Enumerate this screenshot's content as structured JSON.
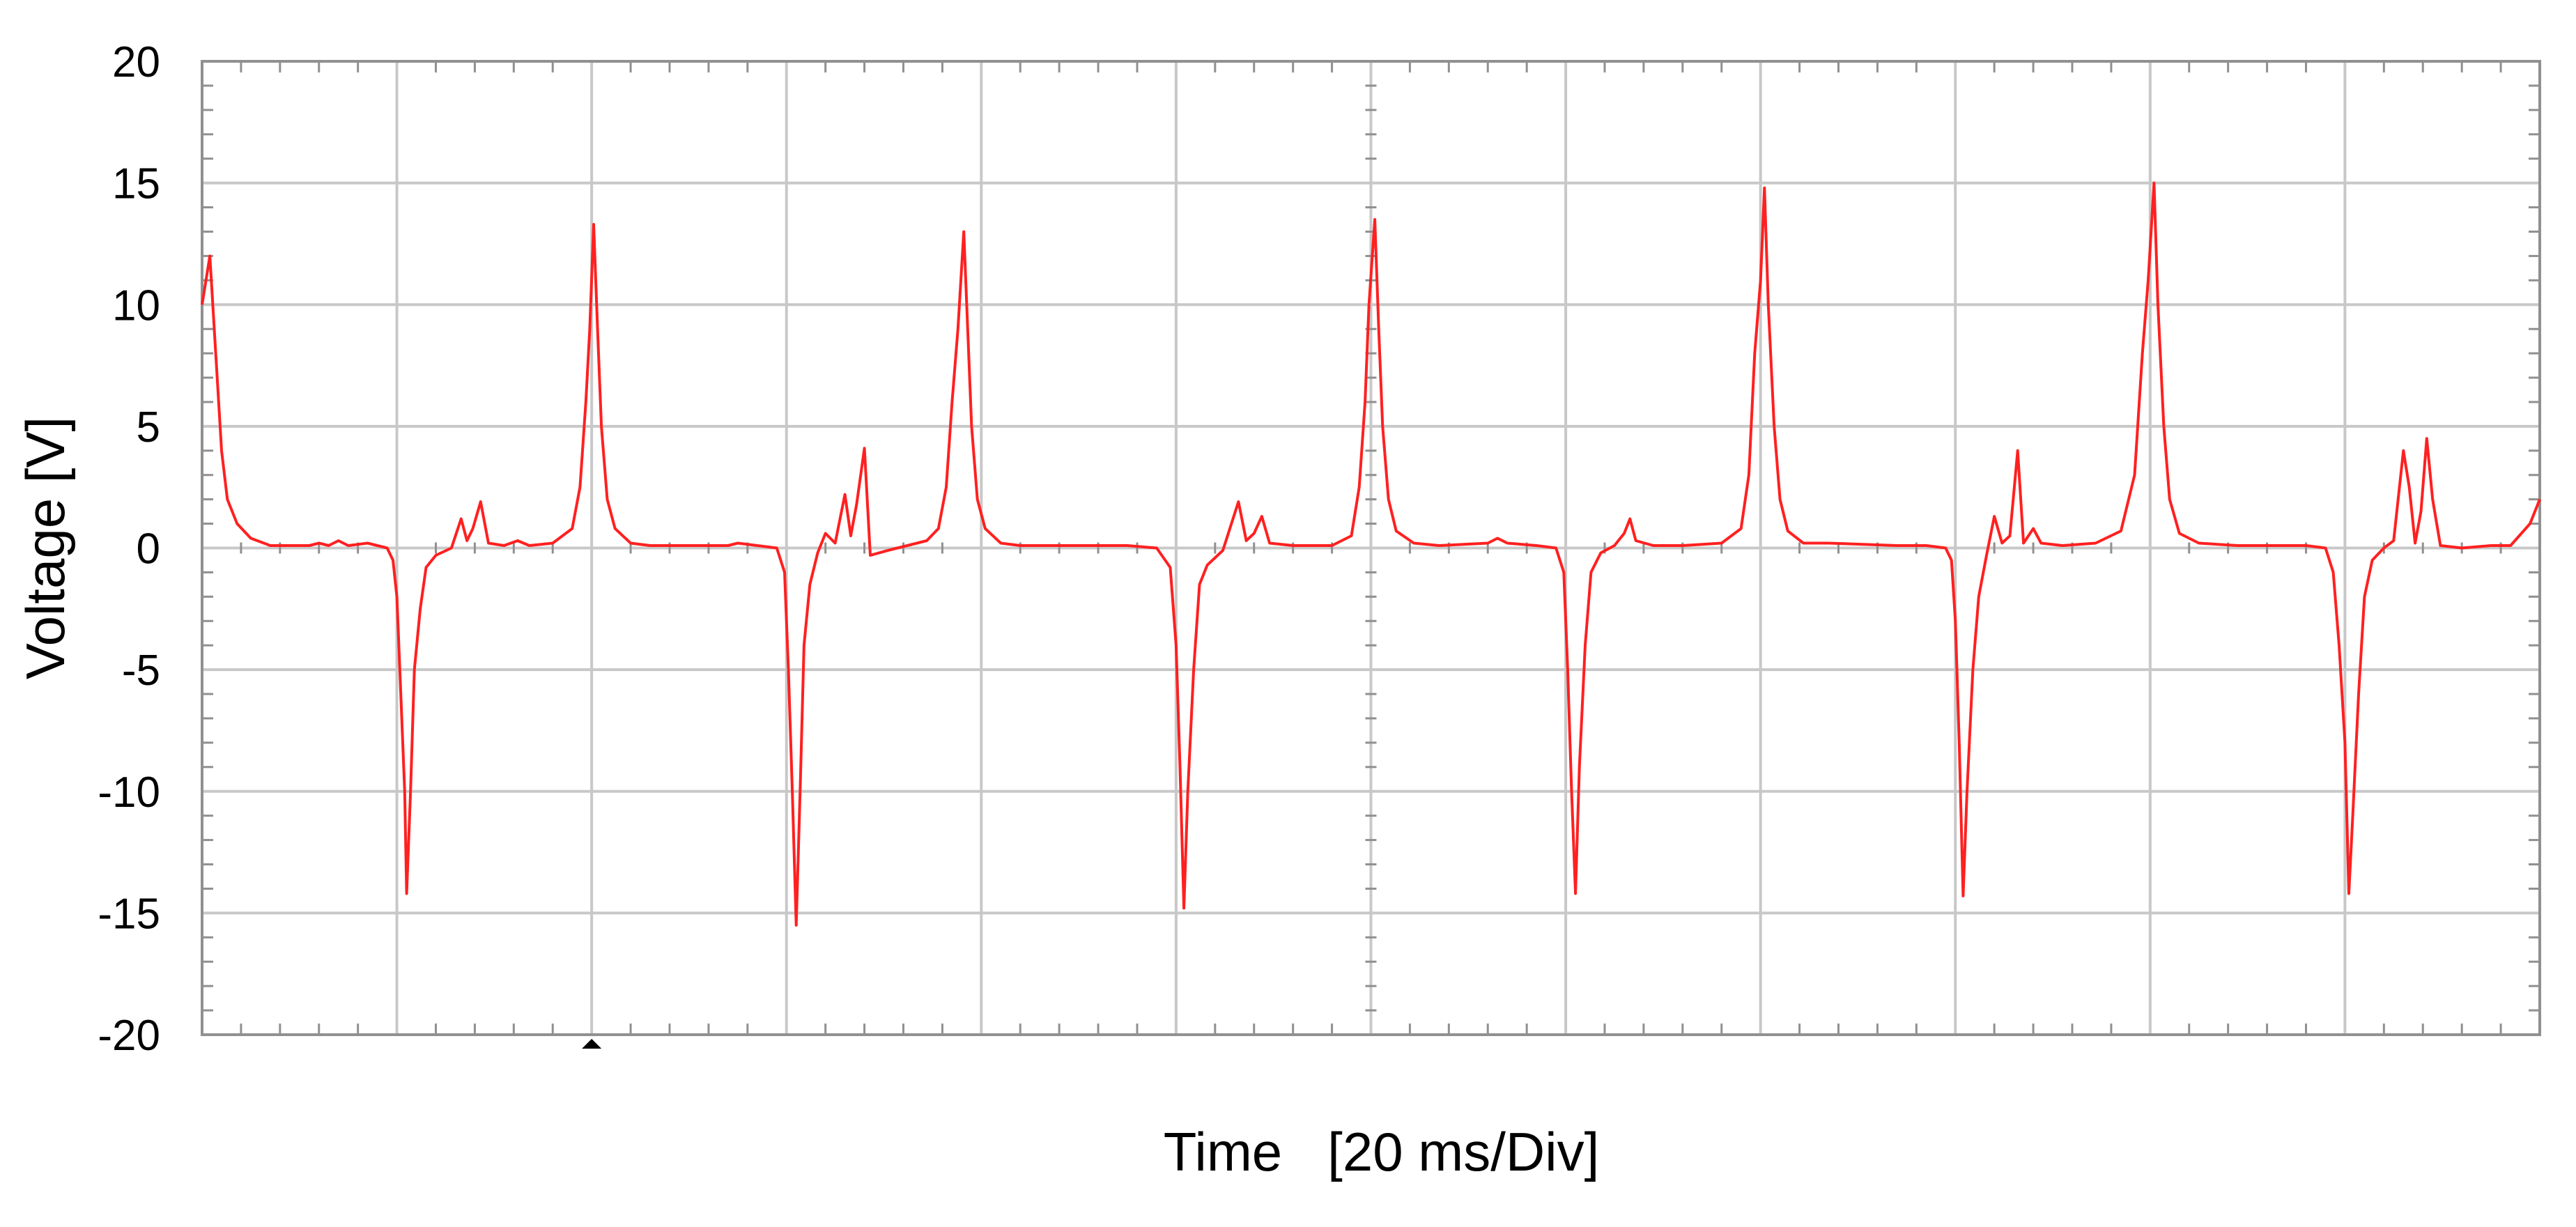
{
  "chart_data": {
    "type": "line",
    "title": "",
    "xlabel": "Time   [20 ms/Div]",
    "ylabel": "Voltage [V]",
    "x_unit": "divisions (20 ms/Div)",
    "xlim": [
      0,
      12
    ],
    "ylim": [
      -20,
      20
    ],
    "y_ticks": [
      20,
      15,
      10,
      5,
      0,
      -5,
      -10,
      -15,
      -20
    ],
    "grid": true,
    "legend": "none",
    "colors": {
      "trace": "#ff2020",
      "grid": "#c8c8c8",
      "frame": "#909090",
      "marker": "#000000"
    },
    "trigger_marker_x": 2.0,
    "series": [
      {
        "name": "",
        "points": [
          [
            0.0,
            10.0
          ],
          [
            0.04,
            12.0
          ],
          [
            0.07,
            8.0
          ],
          [
            0.1,
            4.0
          ],
          [
            0.13,
            2.0
          ],
          [
            0.18,
            1.0
          ],
          [
            0.25,
            0.4
          ],
          [
            0.35,
            0.1
          ],
          [
            0.55,
            0.1
          ],
          [
            0.6,
            0.2
          ],
          [
            0.65,
            0.1
          ],
          [
            0.7,
            0.3
          ],
          [
            0.75,
            0.1
          ],
          [
            0.85,
            0.2
          ],
          [
            0.9,
            0.1
          ],
          [
            0.95,
            0.0
          ],
          [
            0.98,
            -0.5
          ],
          [
            1.0,
            -2.0
          ],
          [
            1.02,
            -6.0
          ],
          [
            1.04,
            -10.0
          ],
          [
            1.05,
            -14.2
          ],
          [
            1.07,
            -10.0
          ],
          [
            1.09,
            -5.0
          ],
          [
            1.12,
            -2.5
          ],
          [
            1.15,
            -0.8
          ],
          [
            1.2,
            -0.3
          ],
          [
            1.28,
            0.0
          ],
          [
            1.33,
            1.2
          ],
          [
            1.36,
            0.3
          ],
          [
            1.39,
            0.8
          ],
          [
            1.43,
            1.9
          ],
          [
            1.47,
            0.2
          ],
          [
            1.55,
            0.1
          ],
          [
            1.62,
            0.3
          ],
          [
            1.68,
            0.1
          ],
          [
            1.8,
            0.2
          ],
          [
            1.9,
            0.8
          ],
          [
            1.94,
            2.5
          ],
          [
            1.97,
            6.0
          ],
          [
            1.99,
            9.0
          ],
          [
            2.01,
            13.3
          ],
          [
            2.03,
            9.0
          ],
          [
            2.05,
            5.0
          ],
          [
            2.08,
            2.0
          ],
          [
            2.12,
            0.8
          ],
          [
            2.2,
            0.2
          ],
          [
            2.3,
            0.1
          ],
          [
            2.7,
            0.1
          ],
          [
            2.75,
            0.2
          ],
          [
            2.85,
            0.1
          ],
          [
            2.95,
            0.0
          ],
          [
            2.99,
            -1.0
          ],
          [
            3.01,
            -5.0
          ],
          [
            3.03,
            -10.0
          ],
          [
            3.05,
            -15.5
          ],
          [
            3.07,
            -10.0
          ],
          [
            3.09,
            -4.0
          ],
          [
            3.12,
            -1.5
          ],
          [
            3.16,
            -0.2
          ],
          [
            3.2,
            0.6
          ],
          [
            3.25,
            0.2
          ],
          [
            3.3,
            2.2
          ],
          [
            3.33,
            0.5
          ],
          [
            3.36,
            1.8
          ],
          [
            3.4,
            4.1
          ],
          [
            3.43,
            -0.3
          ],
          [
            3.52,
            -0.1
          ],
          [
            3.62,
            0.1
          ],
          [
            3.72,
            0.3
          ],
          [
            3.78,
            0.8
          ],
          [
            3.82,
            2.5
          ],
          [
            3.85,
            6.0
          ],
          [
            3.88,
            9.0
          ],
          [
            3.91,
            13.0
          ],
          [
            3.93,
            9.0
          ],
          [
            3.95,
            5.0
          ],
          [
            3.98,
            2.0
          ],
          [
            4.02,
            0.8
          ],
          [
            4.1,
            0.2
          ],
          [
            4.2,
            0.1
          ],
          [
            4.6,
            0.1
          ],
          [
            4.75,
            0.1
          ],
          [
            4.9,
            0.0
          ],
          [
            4.97,
            -0.8
          ],
          [
            5.0,
            -4.0
          ],
          [
            5.02,
            -9.0
          ],
          [
            5.04,
            -14.8
          ],
          [
            5.06,
            -10.0
          ],
          [
            5.09,
            -5.0
          ],
          [
            5.12,
            -1.5
          ],
          [
            5.16,
            -0.7
          ],
          [
            5.24,
            -0.1
          ],
          [
            5.32,
            1.9
          ],
          [
            5.36,
            0.3
          ],
          [
            5.4,
            0.6
          ],
          [
            5.44,
            1.3
          ],
          [
            5.48,
            0.2
          ],
          [
            5.6,
            0.1
          ],
          [
            5.8,
            0.1
          ],
          [
            5.9,
            0.5
          ],
          [
            5.94,
            2.5
          ],
          [
            5.97,
            6.0
          ],
          [
            5.99,
            10.0
          ],
          [
            6.02,
            13.5
          ],
          [
            6.04,
            9.0
          ],
          [
            6.06,
            5.0
          ],
          [
            6.09,
            2.0
          ],
          [
            6.13,
            0.7
          ],
          [
            6.22,
            0.2
          ],
          [
            6.35,
            0.1
          ],
          [
            6.6,
            0.2
          ],
          [
            6.65,
            0.4
          ],
          [
            6.7,
            0.2
          ],
          [
            6.85,
            0.1
          ],
          [
            6.95,
            0.0
          ],
          [
            6.99,
            -1.0
          ],
          [
            7.01,
            -5.0
          ],
          [
            7.03,
            -10.0
          ],
          [
            7.05,
            -14.2
          ],
          [
            7.07,
            -9.0
          ],
          [
            7.1,
            -4.0
          ],
          [
            7.13,
            -1.0
          ],
          [
            7.18,
            -0.2
          ],
          [
            7.25,
            0.1
          ],
          [
            7.3,
            0.6
          ],
          [
            7.33,
            1.2
          ],
          [
            7.36,
            0.3
          ],
          [
            7.45,
            0.1
          ],
          [
            7.6,
            0.1
          ],
          [
            7.8,
            0.2
          ],
          [
            7.9,
            0.8
          ],
          [
            7.94,
            3.0
          ],
          [
            7.97,
            8.0
          ],
          [
            8.0,
            11.0
          ],
          [
            8.02,
            14.8
          ],
          [
            8.04,
            10.0
          ],
          [
            8.07,
            5.0
          ],
          [
            8.1,
            2.0
          ],
          [
            8.14,
            0.7
          ],
          [
            8.22,
            0.2
          ],
          [
            8.35,
            0.2
          ],
          [
            8.7,
            0.1
          ],
          [
            8.85,
            0.1
          ],
          [
            8.95,
            0.0
          ],
          [
            8.98,
            -0.5
          ],
          [
            9.0,
            -3.0
          ],
          [
            9.02,
            -8.0
          ],
          [
            9.04,
            -14.3
          ],
          [
            9.06,
            -10.0
          ],
          [
            9.09,
            -5.0
          ],
          [
            9.12,
            -2.0
          ],
          [
            9.16,
            -0.3
          ],
          [
            9.2,
            1.3
          ],
          [
            9.24,
            0.2
          ],
          [
            9.28,
            0.5
          ],
          [
            9.32,
            4.0
          ],
          [
            9.35,
            0.2
          ],
          [
            9.4,
            0.8
          ],
          [
            9.44,
            0.2
          ],
          [
            9.55,
            0.1
          ],
          [
            9.72,
            0.2
          ],
          [
            9.85,
            0.7
          ],
          [
            9.92,
            3.0
          ],
          [
            9.96,
            8.0
          ],
          [
            9.99,
            11.0
          ],
          [
            10.02,
            15.0
          ],
          [
            10.04,
            10.0
          ],
          [
            10.07,
            5.0
          ],
          [
            10.1,
            2.0
          ],
          [
            10.15,
            0.6
          ],
          [
            10.25,
            0.2
          ],
          [
            10.45,
            0.1
          ],
          [
            10.8,
            0.1
          ],
          [
            10.9,
            0.0
          ],
          [
            10.94,
            -1.0
          ],
          [
            10.97,
            -4.0
          ],
          [
            11.0,
            -8.0
          ],
          [
            11.02,
            -14.2
          ],
          [
            11.04,
            -11.0
          ],
          [
            11.07,
            -6.0
          ],
          [
            11.1,
            -2.0
          ],
          [
            11.14,
            -0.5
          ],
          [
            11.2,
            0.0
          ],
          [
            11.25,
            0.3
          ],
          [
            11.3,
            4.0
          ],
          [
            11.33,
            2.5
          ],
          [
            11.36,
            0.2
          ],
          [
            11.39,
            1.5
          ],
          [
            11.42,
            4.5
          ],
          [
            11.45,
            2.0
          ],
          [
            11.49,
            0.1
          ],
          [
            11.6,
            0.0
          ],
          [
            11.75,
            0.1
          ],
          [
            11.85,
            0.1
          ],
          [
            11.95,
            1.0
          ],
          [
            12.0,
            2.0
          ]
        ]
      }
    ]
  }
}
